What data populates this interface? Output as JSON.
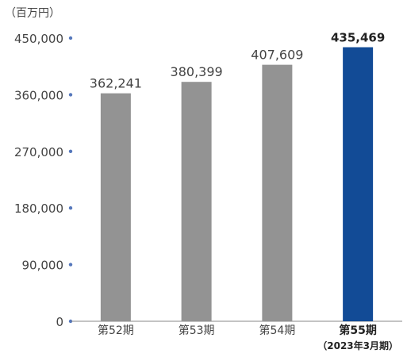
{
  "chart_data": {
    "type": "bar",
    "unit_label": "（百万円）",
    "categories": [
      "第52期",
      "第53期",
      "第54期",
      "第55期"
    ],
    "category_notes": [
      "",
      "",
      "",
      "（2023年3月期）"
    ],
    "values": [
      362241,
      380399,
      407609,
      435469
    ],
    "value_labels": [
      "362,241",
      "380,399",
      "407,609",
      "435,469"
    ],
    "highlight_index": 3,
    "ylim": [
      0,
      450000
    ],
    "yticks": [
      0,
      90000,
      180000,
      270000,
      360000,
      450000
    ],
    "ytick_labels": [
      "0",
      "90,000",
      "180,000",
      "270,000",
      "360,000",
      "450,000"
    ],
    "grid": false,
    "colors": {
      "bar": "#939393",
      "highlight": "#124b96",
      "axis": "#8a8a8a",
      "tick_dot": "#5577bb"
    }
  }
}
